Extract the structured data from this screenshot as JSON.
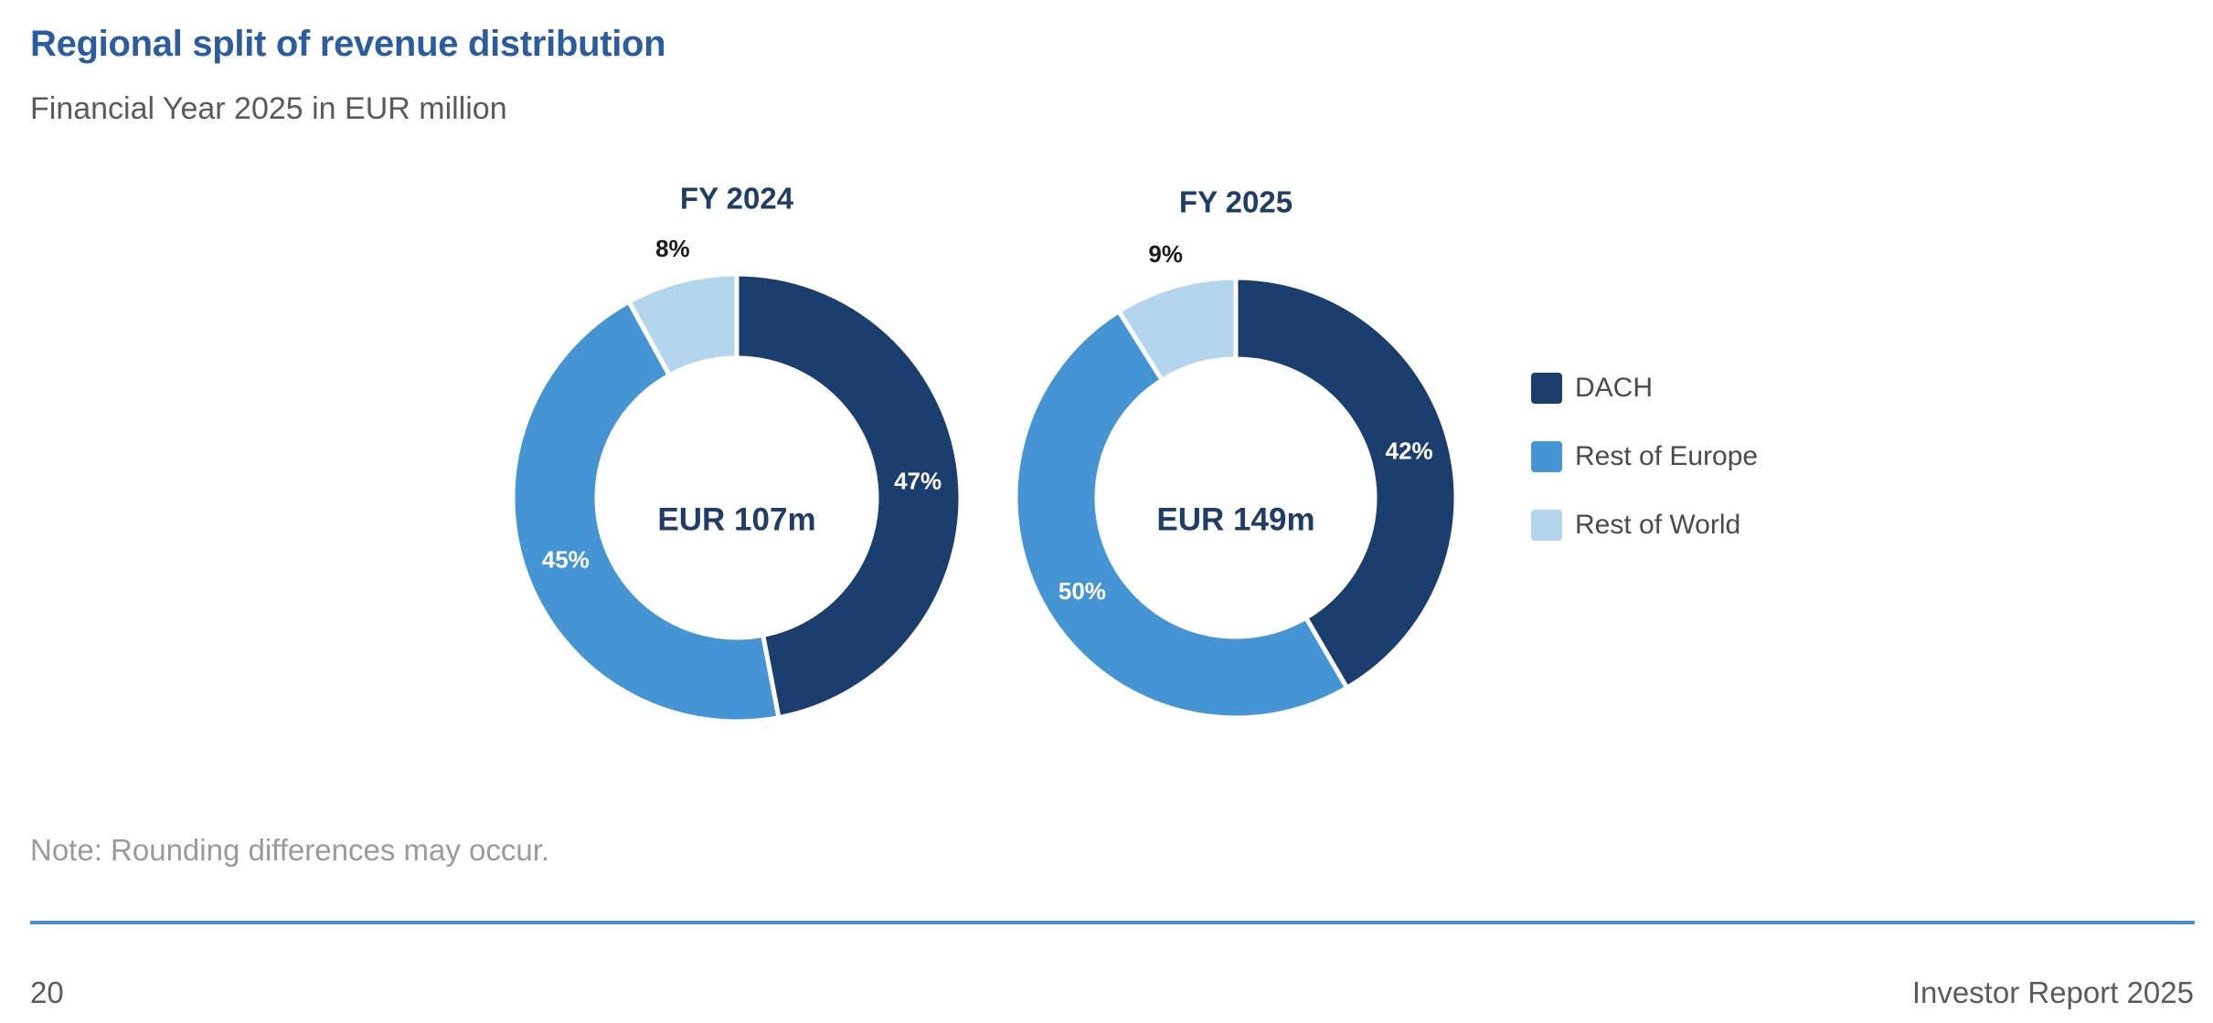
{
  "header": {
    "title": "Regional split of revenue distribution",
    "subtitle": "Financial Year 2025 in EUR million"
  },
  "chart_data": [
    {
      "type": "pie",
      "variant": "donut",
      "title": "FY 2024",
      "center_label": "EUR 107m",
      "categories": [
        "DACH",
        "Rest of Europe",
        "Rest of World"
      ],
      "values": [
        47,
        45,
        8
      ],
      "labels": [
        "47%",
        "45%",
        "8%"
      ],
      "colors": [
        "#1c3e6e",
        "#4594d3",
        "#b3d5ee"
      ]
    },
    {
      "type": "pie",
      "variant": "donut",
      "title": "FY 2025",
      "center_label": "EUR 149m",
      "categories": [
        "DACH",
        "Rest of Europe",
        "Rest of World"
      ],
      "values": [
        42,
        50,
        9
      ],
      "labels": [
        "42%",
        "50%",
        "9%"
      ],
      "colors": [
        "#1c3e6e",
        "#4594d3",
        "#b3d5ee"
      ]
    }
  ],
  "legend": {
    "placement": "right",
    "items": [
      {
        "label": "DACH",
        "color": "#1c3e6e"
      },
      {
        "label": "Rest of Europe",
        "color": "#4594d3"
      },
      {
        "label": "Rest of World",
        "color": "#b3d5ee"
      }
    ]
  },
  "footer": {
    "note": "Note: Rounding differences may occur.",
    "page_number": "20",
    "report_name": "Investor Report 2025"
  }
}
